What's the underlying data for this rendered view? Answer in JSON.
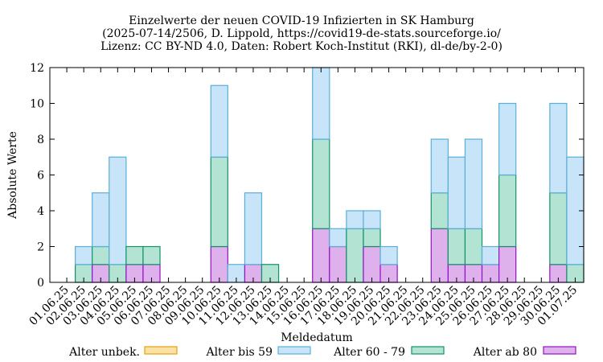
{
  "chart_data": {
    "type": "bar",
    "stacked": true,
    "title_lines": [
      "Einzelwerte der neuen COVID-19 Infizierten in SK Hamburg",
      "(2025-07-14/2506, D. Lippold, https://covid19-de-stats.sourceforge.io/",
      "Lizenz: CC BY-ND 4.0, Daten: Robert Koch-Institut (RKI), dl-de/by-2-0)"
    ],
    "xlabel": "Meldedatum",
    "ylabel": "Absolute Werte",
    "ylim": [
      0,
      12
    ],
    "yticks": [
      0,
      2,
      4,
      6,
      8,
      10,
      12
    ],
    "categories": [
      "01.06.25",
      "02.06.25",
      "03.06.25",
      "04.06.25",
      "05.06.25",
      "06.06.25",
      "07.06.25",
      "08.06.25",
      "09.06.25",
      "10.06.25",
      "11.06.25",
      "12.06.25",
      "13.06.25",
      "14.06.25",
      "15.06.25",
      "16.06.25",
      "17.06.25",
      "18.06.25",
      "19.06.25",
      "20.06.25",
      "21.06.25",
      "22.06.25",
      "23.06.25",
      "24.06.25",
      "25.06.25",
      "26.06.25",
      "27.06.25",
      "28.06.25",
      "29.06.25",
      "30.06.25",
      "01.07.25"
    ],
    "series": [
      {
        "name": "Alter unbek.",
        "fill": "#fbe1a4",
        "stroke": "#e6a10f",
        "values": [
          0,
          0,
          0,
          0,
          0,
          0,
          0,
          0,
          0,
          0,
          0,
          0,
          0,
          0,
          0,
          0,
          0,
          0,
          0,
          0,
          0,
          0,
          0,
          0,
          0,
          0,
          0,
          0,
          0,
          0,
          0
        ]
      },
      {
        "name": "Alter bis 59",
        "fill": "#c8e4f8",
        "stroke": "#5aafd9",
        "values": [
          0,
          1,
          3,
          6,
          0,
          0,
          0,
          0,
          0,
          4,
          1,
          4,
          0,
          0,
          0,
          4,
          1,
          1,
          1,
          1,
          0,
          0,
          3,
          4,
          5,
          1,
          4,
          0,
          0,
          5,
          6
        ]
      },
      {
        "name": "Alter 60 - 79",
        "fill": "#b3e3d3",
        "stroke": "#14936a",
        "values": [
          0,
          1,
          1,
          1,
          1,
          1,
          0,
          0,
          0,
          5,
          0,
          0,
          1,
          0,
          0,
          5,
          0,
          3,
          1,
          0,
          0,
          0,
          2,
          2,
          2,
          0,
          4,
          0,
          0,
          4,
          1
        ]
      },
      {
        "name": "Alter ab 80",
        "fill": "#dfb1ec",
        "stroke": "#9312c4",
        "values": [
          0,
          0,
          1,
          0,
          1,
          1,
          0,
          0,
          0,
          2,
          0,
          1,
          0,
          0,
          0,
          3,
          2,
          0,
          2,
          1,
          0,
          0,
          3,
          1,
          1,
          1,
          2,
          0,
          0,
          1,
          0
        ]
      }
    ],
    "legend_position": "bottom",
    "grid": false
  }
}
